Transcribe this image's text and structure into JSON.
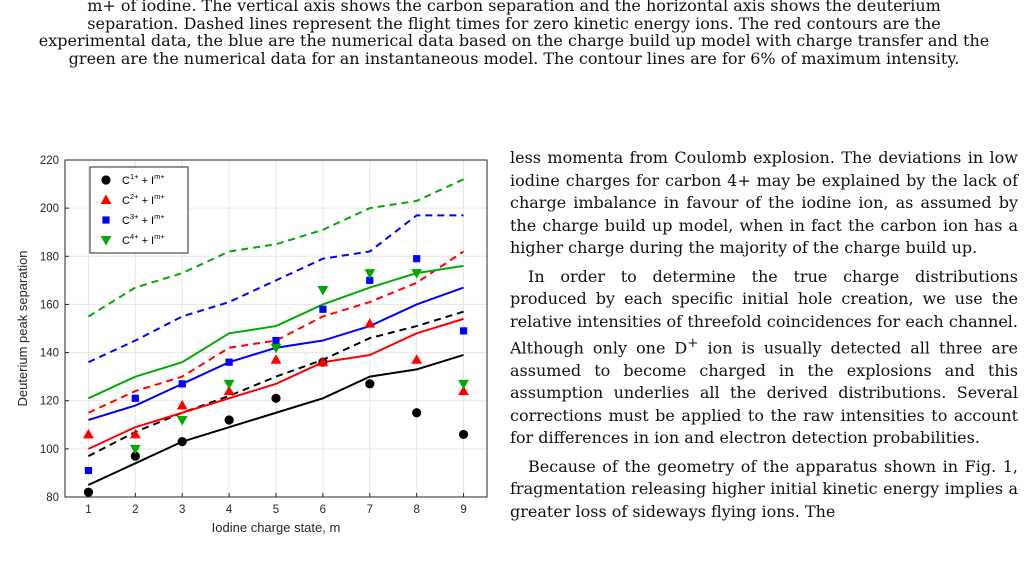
{
  "caption": {
    "lines": [
      "m+ of iodine. The vertical axis shows the carbon separation and the horizontal axis shows the deuterium",
      "separation. Dashed lines represent the flight times for zero kinetic energy ions. The red contours are the",
      "experimental data, the blue are the numerical data based on the charge build up model with charge transfer and the",
      "green are the numerical data for an instantaneous model. The contour lines are for 6% of maximum intensity."
    ]
  },
  "body": {
    "p1": "less momenta from Coulomb explosion. The deviations in low iodine charges for carbon 4+ may be explained by the lack of charge imbalance in favour of the iodine ion, as assumed by the charge build up model, when in fact the carbon ion has a higher charge during the majority of the charge build up.",
    "p2_a": "In order to determine the true charge distributions produced by each specific initial hole creation, we use the relative intensities of threefold coincidences for each channel. Although only one D",
    "p2_sup": "+",
    "p2_b": " ion is usually detected all three are assumed to become charged in the explosions and this assumption underlies all the derived distributions. Several corrections must be applied to the raw intensities to account for differences in ion and electron detection probabilities.",
    "p3": "Because of the geometry of the apparatus shown in Fig. 1, fragmentation releasing higher initial kinetic energy implies a greater loss of sideways flying ions. The"
  },
  "chart_data": {
    "type": "scatter",
    "xlabel": "Iodine charge state, m",
    "ylabel": "Deuterium peak separation",
    "xlim": [
      0.5,
      9.5
    ],
    "ylim": [
      80,
      220
    ],
    "xticks": [
      "1",
      "2",
      "3",
      "4",
      "5",
      "6",
      "7",
      "8",
      "9"
    ],
    "yticks": [
      "80",
      "100",
      "120",
      "140",
      "160",
      "180",
      "200",
      "220"
    ],
    "grid": true,
    "legend_position": "top-left",
    "x": [
      1,
      2,
      3,
      4,
      5,
      6,
      7,
      8,
      9
    ],
    "series": [
      {
        "name": "C1+ + Im+",
        "label_main": "C",
        "label_sup1": "1+",
        "label_mid": " + I",
        "label_sup2": "m+",
        "color": "#000000",
        "marker": "circle",
        "points": [
          82,
          97,
          103,
          112,
          121,
          136,
          127,
          115,
          106
        ],
        "solid": [
          85,
          94,
          103,
          109,
          115,
          121,
          130,
          133,
          139
        ],
        "dashed": [
          97,
          107,
          115,
          122,
          130,
          137,
          146,
          151,
          157
        ]
      },
      {
        "name": "C2+ + Im+",
        "label_main": "C",
        "label_sup1": "2+",
        "label_mid": " + I",
        "label_sup2": "m+",
        "color": "#ff0000",
        "marker": "triangle-up",
        "points": [
          106,
          106,
          118,
          124,
          137,
          136,
          152,
          137,
          124
        ],
        "solid": [
          100,
          109,
          115,
          121,
          127,
          136,
          139,
          148,
          154
        ],
        "dashed": [
          115,
          124,
          130,
          142,
          145,
          155,
          161,
          169,
          182
        ]
      },
      {
        "name": "C3+ + Im+",
        "label_main": "C",
        "label_sup1": "3+",
        "label_mid": " + I",
        "label_sup2": "m+",
        "color": "#0000ff",
        "marker": "square",
        "points": [
          91,
          121,
          127,
          136,
          145,
          158,
          170,
          179,
          149
        ],
        "solid": [
          112,
          118,
          127,
          136,
          142,
          145,
          151,
          160,
          167
        ],
        "dashed": [
          136,
          145,
          155,
          161,
          170,
          179,
          182,
          197,
          197
        ]
      },
      {
        "name": "C4+ + Im+",
        "label_main": "C",
        "label_sup1": "4+",
        "label_mid": " + I",
        "label_sup2": "m+",
        "color": "#00aa00",
        "marker": "triangle-down",
        "points": [
          null,
          100,
          112,
          127,
          142,
          166,
          173,
          173,
          127
        ],
        "solid": [
          121,
          130,
          136,
          148,
          151,
          160,
          167,
          173,
          176
        ],
        "dashed": [
          155,
          167,
          173,
          182,
          185,
          191,
          200,
          203,
          212
        ]
      }
    ]
  }
}
